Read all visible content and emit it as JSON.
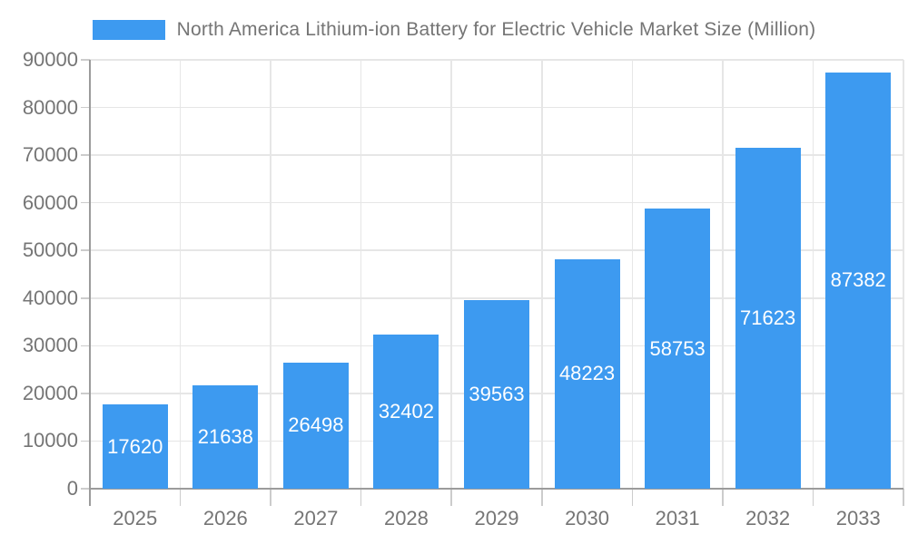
{
  "legend": {
    "label": "North America Lithium-ion Battery for Electric Vehicle Market Size (Million)"
  },
  "colors": {
    "bar": "#3D9AF0",
    "text": "#757575",
    "axis": "#9B9B9B",
    "grid": "#E6E6E6",
    "tick": "#CCCCCC",
    "value_label": "#FFFFFF",
    "background": "#FFFFFF"
  },
  "chart_data": {
    "type": "bar",
    "title": "North America Lithium-ion Battery for Electric Vehicle Market Size (Million)",
    "categories": [
      "2025",
      "2026",
      "2027",
      "2028",
      "2029",
      "2030",
      "2031",
      "2032",
      "2033"
    ],
    "values": [
      17620,
      21638,
      26498,
      32402,
      39563,
      48223,
      58753,
      71623,
      87382
    ],
    "xlabel": "",
    "ylabel": "",
    "ylim": [
      0,
      90000
    ],
    "ytick_step": 10000,
    "yticks": [
      0,
      10000,
      20000,
      30000,
      40000,
      50000,
      60000,
      70000,
      80000,
      90000
    ],
    "grid": true,
    "legend_position": "top",
    "value_labels": "inside-center-white"
  }
}
